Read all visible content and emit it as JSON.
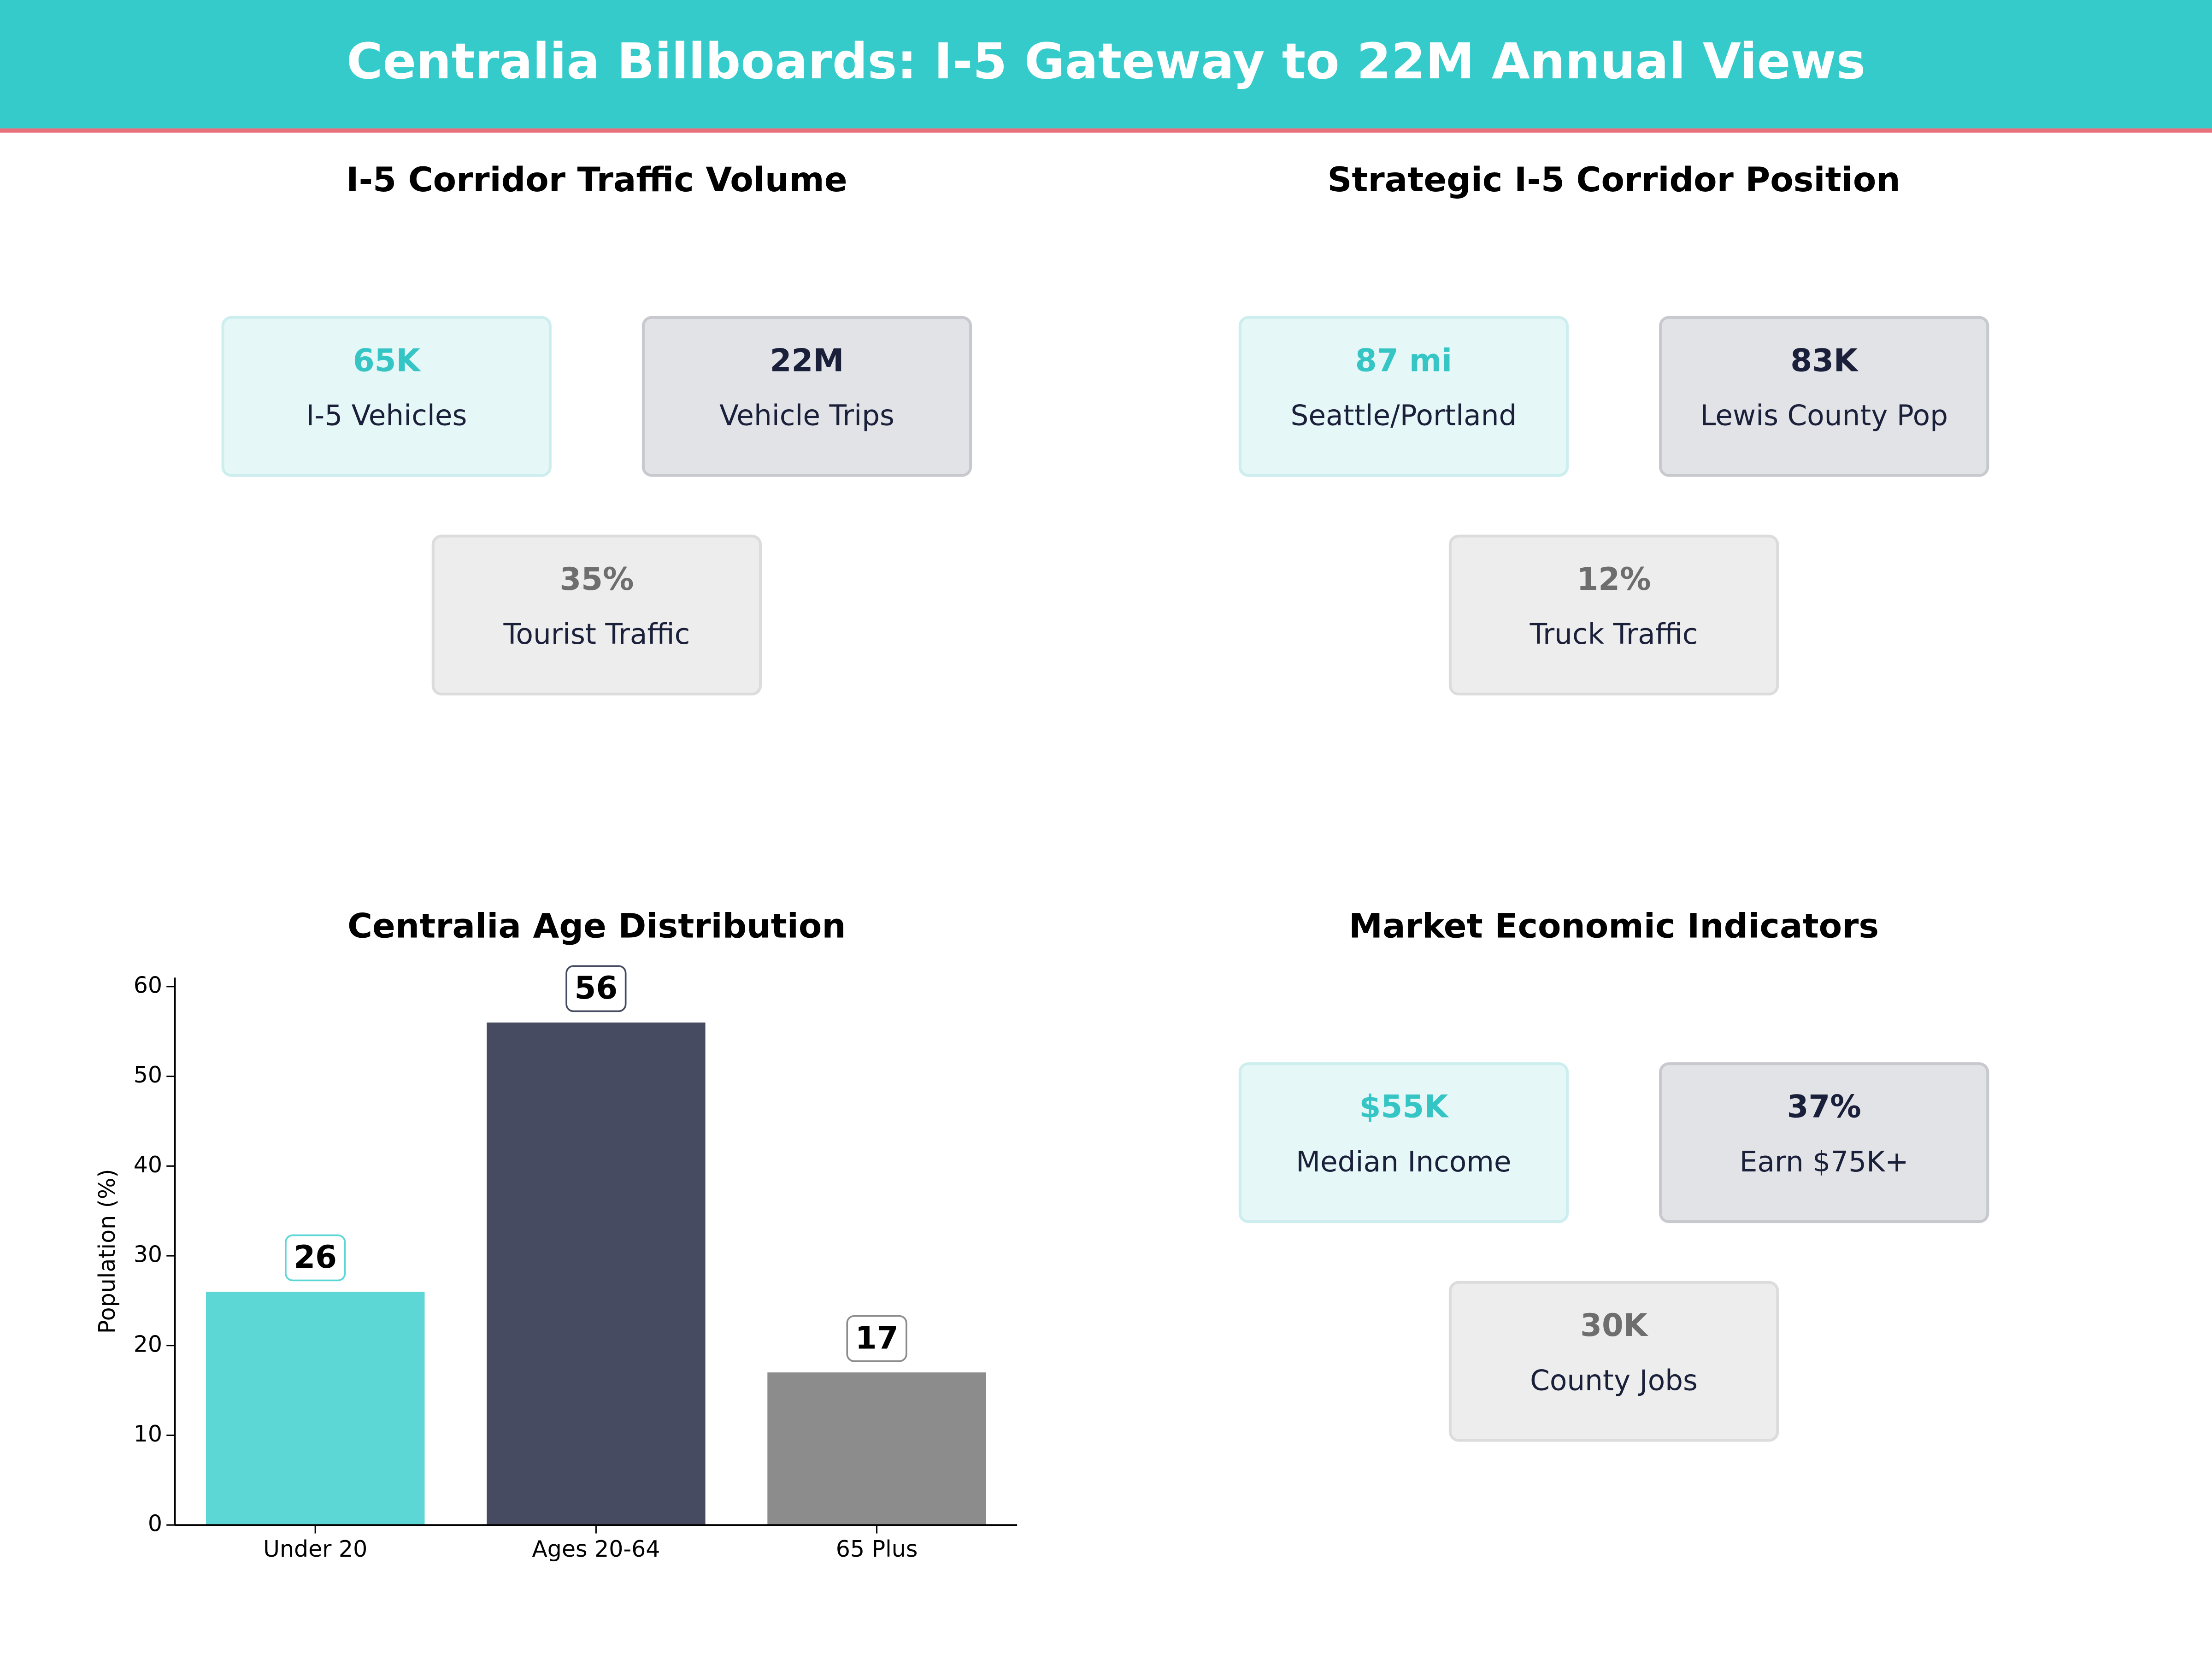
{
  "header": {
    "title": "Centralia Billboards: I-5 Gateway to 22M Annual Views"
  },
  "panels": [
    {
      "title": "I-5 Corridor Traffic Volume",
      "cards": [
        {
          "value": "65K",
          "label": "I-5 Vehicles"
        },
        {
          "value": "22M",
          "label": "Vehicle Trips"
        },
        {
          "value": "35%",
          "label": "Tourist Traffic"
        }
      ]
    },
    {
      "title": "Strategic I-5 Corridor Position",
      "cards": [
        {
          "value": "87 mi",
          "label": "Seattle/Portland"
        },
        {
          "value": "83K",
          "label": "Lewis County Pop"
        },
        {
          "value": "12%",
          "label": "Truck Traffic"
        }
      ]
    },
    {
      "title": "Market Economic Indicators",
      "cards": [
        {
          "value": "$55K",
          "label": "Median Income"
        },
        {
          "value": "37%",
          "label": "Earn $75K+"
        },
        {
          "value": "30K",
          "label": "County Jobs"
        }
      ]
    }
  ],
  "chart_data": {
    "type": "bar",
    "title": "Centralia Age Distribution",
    "y_label": "Population (%)",
    "categories": [
      "Under 20",
      "Ages 20-64",
      "65 Plus"
    ],
    "values": [
      26,
      56,
      17
    ],
    "colors": [
      "#5dd6d6",
      "#464b62",
      "#8c8c8c"
    ],
    "ylim": [
      0,
      61
    ],
    "yticks": [
      0,
      10,
      20,
      30,
      40,
      50,
      60
    ]
  }
}
